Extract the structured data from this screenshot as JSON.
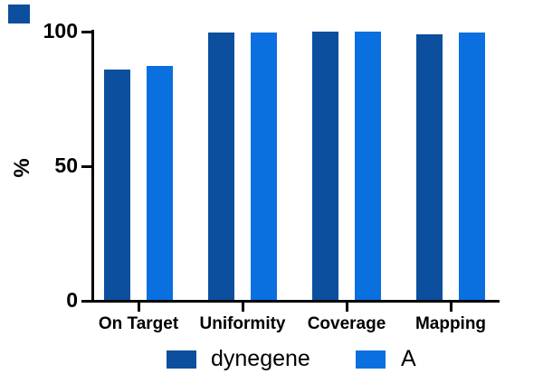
{
  "chart_data": {
    "type": "bar",
    "title": "",
    "categories": [
      "On Target",
      "Uniformity",
      "Coverage",
      "Mapping"
    ],
    "series": [
      {
        "name": "dynegene",
        "color": "#0B4F9E",
        "values": [
          86.0,
          99.6,
          99.9,
          99.0
        ]
      },
      {
        "name": "A",
        "color": "#0A6FDF",
        "values": [
          87.3,
          99.5,
          99.9,
          99.8
        ]
      }
    ],
    "xlabel": "",
    "ylabel": "%",
    "yticks": [
      0,
      50,
      100
    ],
    "ylim": [
      0,
      100
    ],
    "grid": false,
    "legend_position": "bottom"
  },
  "legend": {
    "items": [
      {
        "label": "dynegene",
        "color": "#0B4F9E"
      },
      {
        "label": "A",
        "color": "#0A6FDF"
      }
    ]
  },
  "decoration": {
    "corner_square_color": "#0B4F9E"
  }
}
